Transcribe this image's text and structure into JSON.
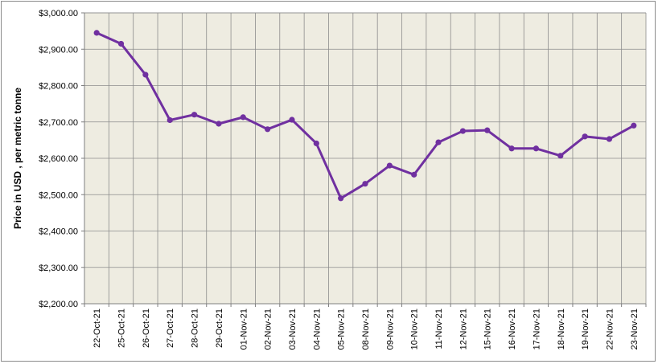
{
  "chart_data": {
    "type": "line",
    "title": "",
    "xlabel": "",
    "ylabel": "Price in USD , per metric tonne",
    "ylim": [
      2200,
      3000
    ],
    "ytick_values": [
      2200,
      2300,
      2400,
      2500,
      2600,
      2700,
      2800,
      2900,
      3000
    ],
    "ytick_labels": [
      "$2,200.00",
      "$2,300.00",
      "$2,400.00",
      "$2,500.00",
      "$2,600.00",
      "$2,700.00",
      "$2,800.00",
      "$2,900.00",
      "$3,000.00"
    ],
    "categories": [
      "22-Oct-21",
      "25-Oct-21",
      "26-Oct-21",
      "27-Oct-21",
      "28-Oct-21",
      "29-Oct-21",
      "01-Nov-21",
      "02-Nov-21",
      "03-Nov-21",
      "04-Nov-21",
      "05-Nov-21",
      "08-Nov-21",
      "09-Nov-21",
      "10-Nov-21",
      "11-Nov-21",
      "12-Nov-21",
      "15-Nov-21",
      "16-Nov-21",
      "17-Nov-21",
      "18-Nov-21",
      "19-Nov-21",
      "22-Nov-21",
      "23-Nov-21"
    ],
    "series": [
      {
        "values": [
          2945,
          2915,
          2830,
          2705,
          2720,
          2695,
          2713,
          2680,
          2706,
          2641,
          2490,
          2530,
          2580,
          2555,
          2644,
          2675,
          2677,
          2627,
          2627,
          2607,
          2660,
          2653,
          2690
        ],
        "color": "#7030a0"
      }
    ],
    "grid": true,
    "plot_background": "#eeece1",
    "legend": "none"
  }
}
